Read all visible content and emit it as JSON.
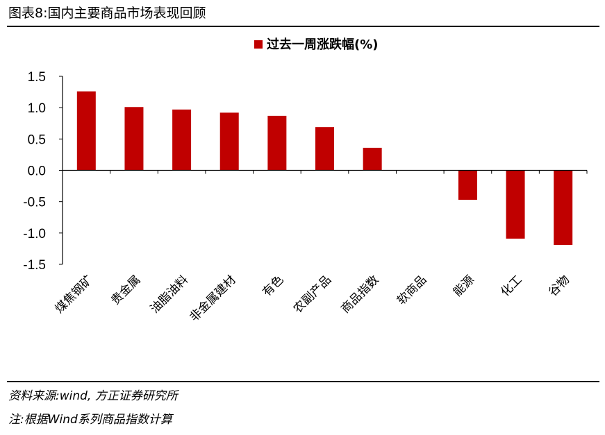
{
  "page": {
    "figure_title": "图表8:国内主要商品市场表现回顾",
    "source_note": "资料来源:wind, 方正证券研究所",
    "footnote": "注:根据Wind系列商品指数计算"
  },
  "chart_data": {
    "type": "bar",
    "title": "",
    "xlabel": "",
    "ylabel": "",
    "ylim": [
      -1.5,
      1.5
    ],
    "yticks": [
      1.5,
      1.0,
      0.5,
      0.0,
      -0.5,
      -1.0,
      -1.5
    ],
    "ytick_labels": [
      "1.5",
      "1.0",
      "0.5",
      "0.0",
      "-0.5",
      "-1.0",
      "-1.5"
    ],
    "grid": false,
    "legend_position": "top-center",
    "categories": [
      "煤焦钢矿",
      "贵金属",
      "油脂油料",
      "非金属建材",
      "有色",
      "农副产品",
      "商品指数",
      "软商品",
      "能源",
      "化工",
      "谷物"
    ],
    "series": [
      {
        "name": "过去一周涨跌幅(%)",
        "color": "#c00000",
        "values": [
          1.26,
          1.01,
          0.97,
          0.92,
          0.87,
          0.69,
          0.36,
          0.0,
          -0.47,
          -1.09,
          -1.19
        ]
      }
    ]
  }
}
